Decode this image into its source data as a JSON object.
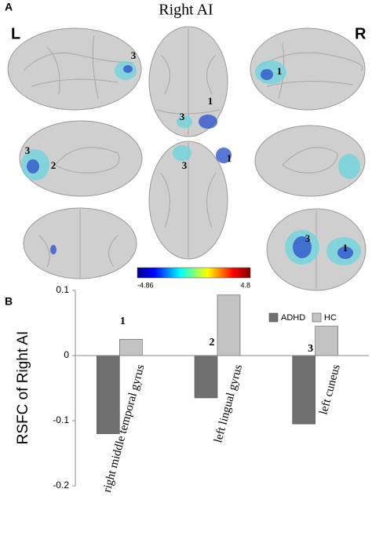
{
  "panel_a": {
    "label": "A",
    "title": "Right AI",
    "left_label": "L",
    "right_label": "R",
    "annotations": [
      "3",
      "3",
      "1",
      "1",
      "3",
      "2",
      "3",
      "1",
      "3",
      "1"
    ],
    "colorbar": {
      "min": -4.86,
      "max": 4.8
    }
  },
  "chart_data": {
    "type": "bar",
    "panel_label": "B",
    "y_label": "RSFC of Right AI",
    "categories": [
      "right middle temporal gyrus",
      "left lingual gyrus",
      "left cuneus"
    ],
    "annotations": [
      "1",
      "2",
      "3"
    ],
    "series": [
      {
        "name": "ADHD",
        "color": "#6f6f6f",
        "values": [
          -0.12,
          -0.065,
          -0.105
        ]
      },
      {
        "name": "HC",
        "color": "#c3c3c3",
        "values": [
          0.025,
          0.093,
          0.045
        ]
      }
    ],
    "ylim": [
      -0.2,
      0.1
    ],
    "yticks": [
      -0.2,
      -0.1,
      0,
      0.1
    ],
    "grid": false,
    "legend": "top-right"
  }
}
